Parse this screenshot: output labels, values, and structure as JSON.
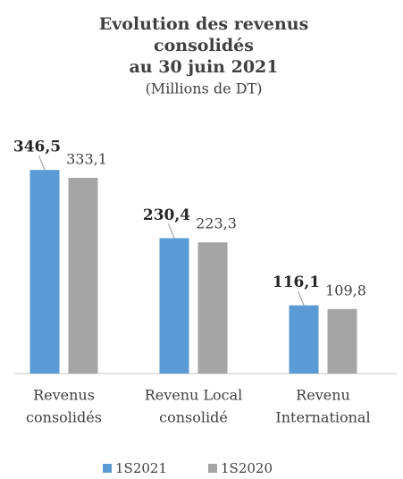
{
  "chart_data": {
    "type": "bar",
    "title": [
      "Evolution des revenus",
      "consolidés",
      "au 30 juin 2021"
    ],
    "subtitle": "(Millions de DT)",
    "categories": [
      [
        "Revenus",
        "consolidés"
      ],
      [
        "Revenu Local",
        "consolidé"
      ],
      [
        "Revenu",
        "International"
      ]
    ],
    "series": [
      {
        "name": "1S2021",
        "color": "#5b9bd5",
        "values": [
          346.5,
          230.4,
          116.1
        ],
        "value_labels": [
          "346,5",
          "230,4",
          "116,1"
        ]
      },
      {
        "name": "1S2020",
        "color": "#a5a5a5",
        "values": [
          333.1,
          223.3,
          109.8
        ],
        "value_labels": [
          "333,1",
          "223,3",
          "109,8"
        ]
      }
    ],
    "ylim": [
      0,
      400
    ]
  }
}
